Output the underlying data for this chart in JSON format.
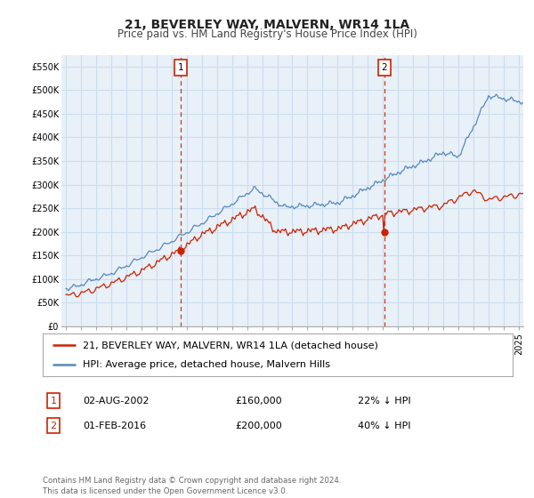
{
  "title": "21, BEVERLEY WAY, MALVERN, WR14 1LA",
  "subtitle": "Price paid vs. HM Land Registry's House Price Index (HPI)",
  "ylim": [
    0,
    575000
  ],
  "yticks": [
    0,
    50000,
    100000,
    150000,
    200000,
    250000,
    300000,
    350000,
    400000,
    450000,
    500000,
    550000
  ],
  "ytick_labels": [
    "£0",
    "£50K",
    "£100K",
    "£150K",
    "£200K",
    "£250K",
    "£300K",
    "£350K",
    "£400K",
    "£450K",
    "£500K",
    "£550K"
  ],
  "background_color": "#ffffff",
  "grid_color": "#ccddee",
  "plot_bg_color": "#e8f0f8",
  "hpi_color": "#5588bb",
  "price_color": "#cc2200",
  "vline_color": "#cc2200",
  "marker1_date": 2002.58,
  "marker1_price": 160000,
  "marker2_date": 2016.08,
  "marker2_price": 200000,
  "legend_label_red": "21, BEVERLEY WAY, MALVERN, WR14 1LA (detached house)",
  "legend_label_blue": "HPI: Average price, detached house, Malvern Hills",
  "table_row1": [
    "1",
    "02-AUG-2002",
    "£160,000",
    "22% ↓ HPI"
  ],
  "table_row2": [
    "2",
    "01-FEB-2016",
    "£200,000",
    "40% ↓ HPI"
  ],
  "footer": "Contains HM Land Registry data © Crown copyright and database right 2024.\nThis data is licensed under the Open Government Licence v3.0.",
  "title_fontsize": 10,
  "subtitle_fontsize": 8.5,
  "tick_fontsize": 7,
  "legend_fontsize": 8
}
